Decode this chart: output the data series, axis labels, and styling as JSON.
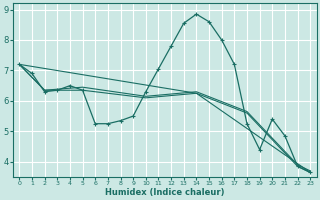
{
  "xlabel": "Humidex (Indice chaleur)",
  "xlim": [
    -0.5,
    23.5
  ],
  "ylim": [
    3.5,
    9.2
  ],
  "yticks": [
    4,
    5,
    6,
    7,
    8,
    9
  ],
  "xticks": [
    0,
    1,
    2,
    3,
    4,
    5,
    6,
    7,
    8,
    9,
    10,
    11,
    12,
    13,
    14,
    15,
    16,
    17,
    18,
    19,
    20,
    21,
    22,
    23
  ],
  "bg_color": "#cce8e4",
  "grid_color": "#ffffff",
  "line_color": "#1a6e64",
  "lines": [
    {
      "x": [
        0,
        1,
        2,
        3,
        4,
        5,
        6,
        7,
        8,
        9,
        10,
        11,
        12,
        13,
        14,
        15,
        16,
        17,
        18,
        19,
        20,
        21,
        22,
        23
      ],
      "y": [
        7.2,
        6.9,
        6.3,
        6.35,
        6.5,
        6.35,
        5.25,
        5.25,
        5.35,
        5.5,
        6.3,
        7.05,
        7.8,
        8.55,
        8.85,
        8.6,
        8.0,
        7.2,
        5.25,
        4.4,
        5.4,
        4.85,
        3.85,
        3.65
      ],
      "has_markers": true
    },
    {
      "x": [
        0,
        2,
        5,
        10,
        14,
        18,
        22,
        23
      ],
      "y": [
        7.2,
        6.35,
        6.35,
        6.1,
        6.25,
        5.6,
        3.85,
        3.65
      ],
      "has_markers": false
    },
    {
      "x": [
        0,
        2,
        5,
        10,
        14,
        18,
        22,
        23
      ],
      "y": [
        7.2,
        6.35,
        6.45,
        6.15,
        6.3,
        5.65,
        3.9,
        3.7
      ],
      "has_markers": false
    },
    {
      "x": [
        0,
        14,
        23
      ],
      "y": [
        7.2,
        6.25,
        3.65
      ],
      "has_markers": false
    }
  ]
}
